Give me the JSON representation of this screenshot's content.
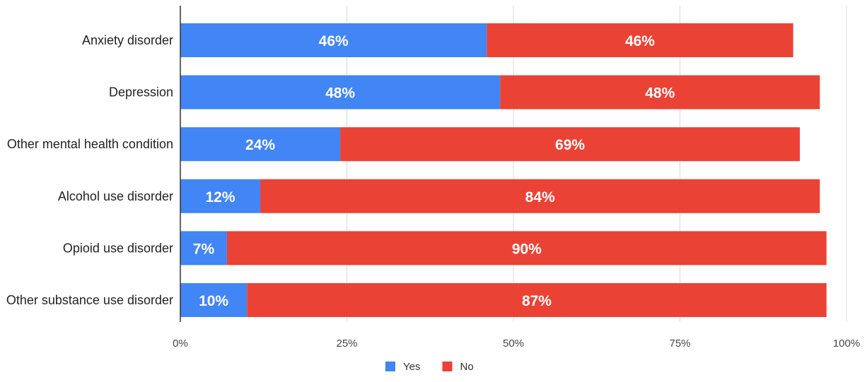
{
  "chart_data": {
    "type": "bar",
    "orientation": "horizontal",
    "stacked": true,
    "categories": [
      "Anxiety disorder",
      "Depression",
      "Other mental health condition",
      "Alcohol use disorder",
      "Opioid use disorder",
      "Other substance use disorder"
    ],
    "series": [
      {
        "name": "Yes",
        "color": "#4285f4",
        "values": [
          46,
          48,
          24,
          12,
          7,
          10
        ],
        "labels": [
          "46%",
          "48%",
          "24%",
          "12%",
          "7%",
          "10%"
        ]
      },
      {
        "name": "No",
        "color": "#ea4335",
        "values": [
          46,
          48,
          69,
          84,
          90,
          87
        ],
        "labels": [
          "46%",
          "48%",
          "69%",
          "84%",
          "90%",
          "87%"
        ]
      }
    ],
    "xlim": [
      0,
      100
    ],
    "x_ticks": [
      "0%",
      "25%",
      "50%",
      "75%",
      "100%"
    ],
    "x_tick_values": [
      0,
      25,
      50,
      75,
      100
    ],
    "grid": "vertical",
    "legend": "bottom"
  }
}
